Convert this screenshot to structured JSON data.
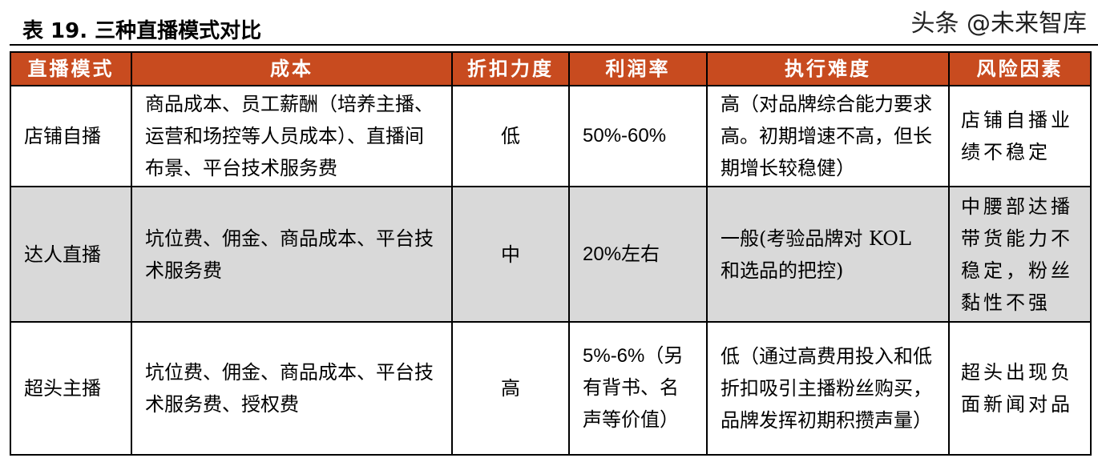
{
  "title": "表 19. 三种直播模式对比",
  "headers": [
    "直播模式",
    "成本",
    "折扣力度",
    "利润率",
    "执行难度",
    "风险因素"
  ],
  "rows": [
    {
      "mode": "店铺自播",
      "cost": "商品成本、员工薪酬（培养主播、运营和场控等人员成本）、直播间布景、平台技术服务费",
      "discount": "低",
      "margin": "50%-60%",
      "difficulty": "高（对品牌综合能力要求高。初期增速不高，但长期增长较稳健）",
      "risk": "店铺自播业绩不稳定"
    },
    {
      "mode": "达人直播",
      "cost": "坑位费、佣金、商品成本、平台技术服务费",
      "discount": "中",
      "margin": "20%左右",
      "difficulty": "一般(考验品牌对 KOL 和选品的把控)",
      "risk": "中腰部达播带货能力不稳定，粉丝黏性不强"
    },
    {
      "mode": "超头主播",
      "cost": "坑位费、佣金、商品成本、平台技术服务费、授权费",
      "discount": "高",
      "margin": "5%-6%（另有背书、名声等价值）",
      "difficulty": "低（通过高费用投入和低折扣吸引主播粉丝购买，品牌发挥初期积攒声量）",
      "risk": "超头出现负面新闻对品"
    }
  ],
  "watermark": "头条 @未来智库",
  "colors": {
    "header_bg": "#C84B1F",
    "header_text": "#FFFFFF",
    "stripe": "#D9D9D9"
  }
}
